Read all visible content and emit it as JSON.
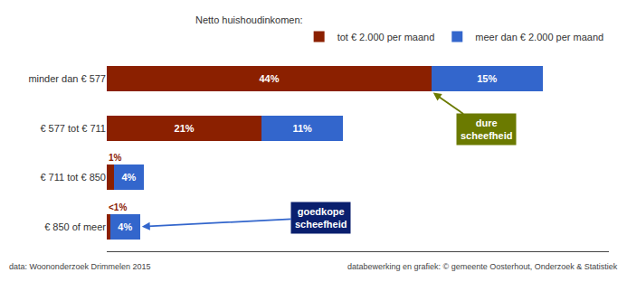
{
  "chart_data": {
    "type": "bar",
    "orientation": "horizontal",
    "stacked": true,
    "categories": [
      "€ 850 of meer",
      "€ 711 tot € 850",
      "€ 577 tot € 711",
      "minder dan € 577"
    ],
    "series": [
      {
        "name": "tot € 2.000 per maand",
        "color": "#8B2000",
        "values": [
          0.5,
          1,
          21,
          44
        ],
        "value_labels": [
          "<1%",
          "1%",
          "21%",
          "44%"
        ]
      },
      {
        "name": "meer dan € 2.000 per maand",
        "color": "#3366CC",
        "values": [
          4,
          4,
          11,
          15
        ],
        "value_labels": [
          "4%",
          "4%",
          "11%",
          "15%"
        ]
      }
    ],
    "data_labels": true,
    "xlim": [
      0,
      68
    ],
    "tick_labels": "y",
    "grid": false,
    "legend": "top right",
    "legend_title": "Netto huishoudinkomen:",
    "annotations": [
      {
        "text": "dure\nscheefheid",
        "category": "minder dan € 577",
        "series": "tot € 2.000 per maand",
        "color": "#6B7A00",
        "arrow_color": "#6B7A00"
      },
      {
        "text": "goedkope\nscheefheid",
        "category": "€ 850 of meer",
        "series": "meer dan € 2.000 per maand",
        "color": "#0A1F6E",
        "arrow_color": "#3366CC"
      }
    ],
    "footnotes": [
      "data: Woononderzoek Drimmelen 2015",
      "databewerking en grafiek: © gemeente Oosterhout, Onderzoek & Statistiek"
    ]
  }
}
